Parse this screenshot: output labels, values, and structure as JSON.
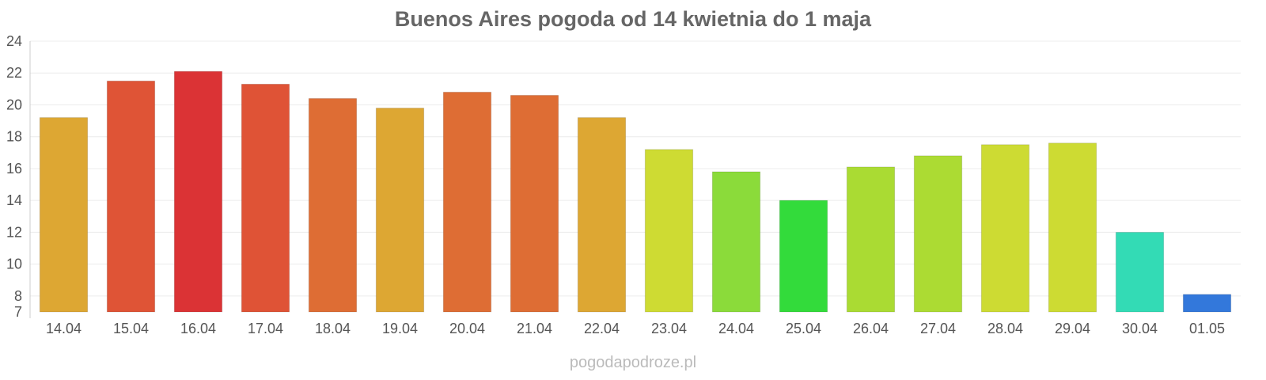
{
  "chart_data": {
    "type": "bar",
    "title": "Buenos Aires pogoda od 14 kwietnia do 1 maja",
    "xlabel": "",
    "ylabel": "",
    "categories": [
      "14.04",
      "15.04",
      "16.04",
      "17.04",
      "18.04",
      "19.04",
      "20.04",
      "21.04",
      "22.04",
      "23.04",
      "24.04",
      "25.04",
      "26.04",
      "27.04",
      "28.04",
      "29.04",
      "30.04",
      "01.05"
    ],
    "values": [
      19.2,
      21.5,
      22.1,
      21.3,
      20.4,
      19.8,
      20.8,
      20.6,
      19.2,
      17.2,
      15.8,
      14.0,
      16.1,
      16.8,
      17.5,
      17.6,
      12.0,
      8.1
    ],
    "colors": [
      "#DDA733",
      "#DF5436",
      "#DB3335",
      "#DF5336",
      "#DE6D34",
      "#DDA733",
      "#DE6D34",
      "#DE6D34",
      "#DDA733",
      "#CEDB33",
      "#8BDB3A",
      "#33DB3B",
      "#AADB33",
      "#ACDB33",
      "#CDDB33",
      "#CDDB33",
      "#33DBB5",
      "#3378DB"
    ],
    "ylim": [
      7,
      24
    ],
    "yticks": [
      7,
      8,
      10,
      12,
      14,
      16,
      18,
      20,
      22,
      24
    ],
    "grid": true,
    "legend": "none"
  },
  "watermark": "pogodapodroze.pl"
}
